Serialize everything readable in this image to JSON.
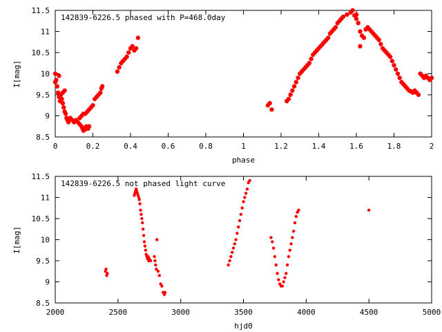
{
  "chart_data": [
    {
      "type": "scatter",
      "title": "142839-6226.5 phased with P=468.0day",
      "xlabel": "phase",
      "ylabel": "I[mag]",
      "xlim": [
        0,
        2
      ],
      "ylim": [
        11.5,
        8.5
      ],
      "y_inverted": true,
      "grid": false,
      "title_position": "top-left inside",
      "marker_color": "#ff0000",
      "xticks": [
        "0",
        "0.2",
        "0.4",
        "0.6",
        "0.8",
        "1",
        "1.2",
        "1.4",
        "1.6",
        "1.8",
        "2"
      ],
      "yticks": [
        "8.5",
        "9",
        "9.5",
        "10",
        "10.5",
        "11",
        "11.5"
      ],
      "series": [
        {
          "points": [
            [
              0.0,
              9.8
            ],
            [
              0.005,
              9.85
            ],
            [
              0.01,
              9.7
            ],
            [
              0.015,
              9.55
            ],
            [
              0.02,
              9.45
            ],
            [
              0.025,
              9.35
            ],
            [
              0.03,
              9.5
            ],
            [
              0.035,
              9.4
            ],
            [
              0.04,
              9.3
            ],
            [
              0.045,
              9.2
            ],
            [
              0.05,
              9.1
            ],
            [
              0.055,
              9.05
            ],
            [
              0.06,
              8.95
            ],
            [
              0.065,
              8.9
            ],
            [
              0.07,
              8.85
            ],
            [
              0.08,
              8.95
            ],
            [
              0.09,
              8.9
            ],
            [
              0.1,
              8.85
            ],
            [
              0.11,
              8.9
            ],
            [
              0.12,
              8.85
            ],
            [
              0.13,
              8.8
            ],
            [
              0.14,
              8.75
            ],
            [
              0.145,
              8.7
            ],
            [
              0.15,
              8.65
            ],
            [
              0.155,
              8.7
            ],
            [
              0.16,
              8.68
            ],
            [
              0.165,
              8.75
            ],
            [
              0.17,
              8.72
            ],
            [
              0.175,
              8.7
            ],
            [
              0.18,
              8.75
            ],
            [
              0.13,
              8.95
            ],
            [
              0.14,
              9.0
            ],
            [
              0.15,
              9.05
            ],
            [
              0.16,
              9.05
            ],
            [
              0.17,
              9.1
            ],
            [
              0.18,
              9.15
            ],
            [
              0.19,
              9.2
            ],
            [
              0.2,
              9.25
            ],
            [
              0.21,
              9.4
            ],
            [
              0.22,
              9.45
            ],
            [
              0.23,
              9.5
            ],
            [
              0.24,
              9.55
            ],
            [
              0.245,
              9.65
            ],
            [
              0.25,
              9.7
            ],
            [
              0.33,
              10.05
            ],
            [
              0.34,
              10.15
            ],
            [
              0.35,
              10.25
            ],
            [
              0.36,
              10.3
            ],
            [
              0.37,
              10.35
            ],
            [
              0.38,
              10.4
            ],
            [
              0.39,
              10.5
            ],
            [
              0.4,
              10.6
            ],
            [
              0.41,
              10.65
            ],
            [
              0.42,
              10.55
            ],
            [
              0.43,
              10.6
            ],
            [
              0.44,
              10.85
            ],
            [
              0.0,
              10.0
            ],
            [
              0.02,
              9.95
            ],
            [
              0.04,
              9.55
            ],
            [
              0.05,
              9.6
            ],
            [
              1.13,
              9.25
            ],
            [
              1.14,
              9.3
            ],
            [
              1.15,
              9.15
            ],
            [
              1.23,
              9.35
            ],
            [
              1.24,
              9.4
            ],
            [
              1.25,
              9.5
            ],
            [
              1.26,
              9.6
            ],
            [
              1.27,
              9.7
            ],
            [
              1.28,
              9.8
            ],
            [
              1.29,
              9.9
            ],
            [
              1.3,
              10.0
            ],
            [
              1.31,
              10.05
            ],
            [
              1.32,
              10.1
            ],
            [
              1.33,
              10.15
            ],
            [
              1.34,
              10.2
            ],
            [
              1.35,
              10.25
            ],
            [
              1.36,
              10.35
            ],
            [
              1.37,
              10.45
            ],
            [
              1.38,
              10.5
            ],
            [
              1.39,
              10.55
            ],
            [
              1.4,
              10.6
            ],
            [
              1.41,
              10.65
            ],
            [
              1.42,
              10.7
            ],
            [
              1.43,
              10.75
            ],
            [
              1.44,
              10.8
            ],
            [
              1.45,
              10.85
            ],
            [
              1.46,
              10.95
            ],
            [
              1.47,
              11.0
            ],
            [
              1.48,
              11.05
            ],
            [
              1.49,
              11.1
            ],
            [
              1.5,
              11.2
            ],
            [
              1.51,
              11.25
            ],
            [
              1.52,
              11.3
            ],
            [
              1.53,
              11.35
            ],
            [
              1.55,
              11.4
            ],
            [
              1.57,
              11.45
            ],
            [
              1.58,
              11.5
            ],
            [
              1.59,
              11.38
            ],
            [
              1.6,
              11.3
            ],
            [
              1.61,
              11.2
            ],
            [
              1.62,
              11.0
            ],
            [
              1.63,
              10.9
            ],
            [
              1.64,
              10.85
            ],
            [
              1.65,
              11.05
            ],
            [
              1.66,
              11.1
            ],
            [
              1.67,
              11.05
            ],
            [
              1.68,
              11.0
            ],
            [
              1.69,
              10.95
            ],
            [
              1.7,
              10.9
            ],
            [
              1.71,
              10.85
            ],
            [
              1.72,
              10.8
            ],
            [
              1.73,
              10.7
            ],
            [
              1.74,
              10.6
            ],
            [
              1.75,
              10.55
            ],
            [
              1.76,
              10.5
            ],
            [
              1.77,
              10.45
            ],
            [
              1.78,
              10.4
            ],
            [
              1.79,
              10.3
            ],
            [
              1.8,
              10.2
            ],
            [
              1.81,
              10.1
            ],
            [
              1.82,
              10.0
            ],
            [
              1.83,
              9.9
            ],
            [
              1.84,
              9.8
            ],
            [
              1.85,
              9.75
            ],
            [
              1.86,
              9.7
            ],
            [
              1.87,
              9.65
            ],
            [
              1.88,
              9.6
            ],
            [
              1.89,
              9.58
            ],
            [
              1.9,
              9.55
            ],
            [
              1.91,
              9.6
            ],
            [
              1.92,
              9.55
            ],
            [
              1.93,
              9.5
            ],
            [
              1.94,
              10.0
            ],
            [
              1.95,
              9.95
            ],
            [
              1.96,
              9.9
            ],
            [
              1.97,
              9.95
            ],
            [
              1.98,
              9.9
            ],
            [
              1.99,
              9.85
            ],
            [
              2.0,
              9.9
            ],
            [
              1.6,
              11.4
            ],
            [
              1.62,
              10.65
            ]
          ]
        }
      ]
    },
    {
      "type": "scatter",
      "title": "142839-6226.5 not phased light curve",
      "xlabel": "hjd0",
      "ylabel": "I[mag]",
      "xlim": [
        2000,
        5000
      ],
      "ylim": [
        11.5,
        8.5
      ],
      "y_inverted": true,
      "grid": false,
      "title_position": "top-left inside",
      "marker_color": "#ff0000",
      "xticks": [
        "2000",
        "2500",
        "3000",
        "3500",
        "4000",
        "4500",
        "5000"
      ],
      "yticks": [
        "8.5",
        "9",
        "9.5",
        "10",
        "10.5",
        "11",
        "11.5"
      ],
      "series": [
        {
          "points": [
            [
              2400,
              9.25
            ],
            [
              2405,
              9.3
            ],
            [
              2410,
              9.15
            ],
            [
              2415,
              9.2
            ],
            [
              2630,
              11.05
            ],
            [
              2635,
              11.1
            ],
            [
              2640,
              11.15
            ],
            [
              2645,
              11.2
            ],
            [
              2650,
              11.15
            ],
            [
              2655,
              11.1
            ],
            [
              2660,
              11.05
            ],
            [
              2665,
              11.0
            ],
            [
              2670,
              10.95
            ],
            [
              2675,
              10.85
            ],
            [
              2680,
              10.7
            ],
            [
              2685,
              10.6
            ],
            [
              2690,
              10.5
            ],
            [
              2695,
              10.4
            ],
            [
              2700,
              10.25
            ],
            [
              2705,
              10.1
            ],
            [
              2710,
              9.95
            ],
            [
              2715,
              9.85
            ],
            [
              2720,
              9.75
            ],
            [
              2725,
              9.65
            ],
            [
              2730,
              9.6
            ],
            [
              2735,
              9.55
            ],
            [
              2740,
              9.6
            ],
            [
              2745,
              9.5
            ],
            [
              2750,
              9.55
            ],
            [
              2760,
              9.5
            ],
            [
              2790,
              9.6
            ],
            [
              2795,
              9.5
            ],
            [
              2800,
              9.4
            ],
            [
              2805,
              9.3
            ],
            [
              2810,
              10.0
            ],
            [
              2820,
              9.25
            ],
            [
              2830,
              9.15
            ],
            [
              2840,
              8.95
            ],
            [
              2850,
              8.9
            ],
            [
              2860,
              8.75
            ],
            [
              2870,
              8.7
            ],
            [
              2875,
              8.75
            ],
            [
              3380,
              9.4
            ],
            [
              3390,
              9.5
            ],
            [
              3400,
              9.6
            ],
            [
              3410,
              9.7
            ],
            [
              3420,
              9.8
            ],
            [
              3430,
              9.9
            ],
            [
              3440,
              10.0
            ],
            [
              3450,
              10.15
            ],
            [
              3460,
              10.3
            ],
            [
              3470,
              10.45
            ],
            [
              3480,
              10.6
            ],
            [
              3490,
              10.75
            ],
            [
              3500,
              10.9
            ],
            [
              3510,
              11.0
            ],
            [
              3520,
              11.1
            ],
            [
              3530,
              11.2
            ],
            [
              3540,
              11.35
            ],
            [
              3550,
              11.4
            ],
            [
              3720,
              10.05
            ],
            [
              3730,
              9.95
            ],
            [
              3740,
              9.8
            ],
            [
              3750,
              9.6
            ],
            [
              3760,
              9.4
            ],
            [
              3770,
              9.2
            ],
            [
              3780,
              9.05
            ],
            [
              3790,
              8.95
            ],
            [
              3800,
              8.9
            ],
            [
              3810,
              8.9
            ],
            [
              3820,
              9.0
            ],
            [
              3830,
              9.1
            ],
            [
              3840,
              9.2
            ],
            [
              3850,
              9.4
            ],
            [
              3860,
              9.6
            ],
            [
              3870,
              9.75
            ],
            [
              3880,
              9.9
            ],
            [
              3890,
              10.05
            ],
            [
              3900,
              10.2
            ],
            [
              3910,
              10.4
            ],
            [
              3920,
              10.55
            ],
            [
              3930,
              10.65
            ],
            [
              3940,
              10.7
            ],
            [
              4500,
              10.7
            ]
          ]
        }
      ]
    }
  ]
}
